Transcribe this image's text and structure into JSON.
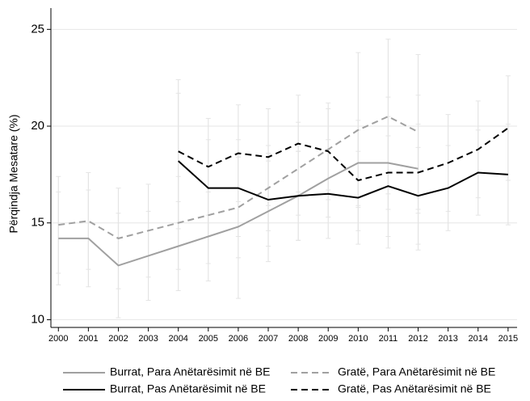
{
  "chart_data": {
    "type": "line",
    "ylabel": "Përqindja Mesatare (%)",
    "x": [
      2000,
      2001,
      2002,
      2003,
      2004,
      2005,
      2006,
      2007,
      2008,
      2009,
      2010,
      2011,
      2012,
      2013,
      2014,
      2015
    ],
    "xlim": [
      1999.75,
      2015.3
    ],
    "xticks": [
      2000,
      2001,
      2002,
      2003,
      2004,
      2005,
      2006,
      2007,
      2008,
      2009,
      2010,
      2011,
      2012,
      2013,
      2014,
      2015
    ],
    "ylim": [
      9.6,
      26.1
    ],
    "yticks": [
      10,
      15,
      20,
      25
    ],
    "grid": true,
    "series": [
      {
        "name": "Burrat, Para Anëtarësimit në BE",
        "color": "#a0a0a0",
        "dash": false,
        "values": [
          14.2,
          14.2,
          12.8,
          13.3,
          13.8,
          14.3,
          14.8,
          15.6,
          16.4,
          17.3,
          18.1,
          18.1,
          17.8,
          null,
          null,
          null
        ],
        "errors": [
          2.4,
          2.5,
          2.7,
          2.3,
          2.3,
          2.3,
          3.7,
          2.6,
          2.3,
          2.0,
          2.2,
          2.4,
          2.3,
          null,
          null,
          null
        ]
      },
      {
        "name": "Gratë, Para Anëtarësimit në BE",
        "color": "#a0a0a0",
        "dash": true,
        "values": [
          14.9,
          15.1,
          14.2,
          14.6,
          15.0,
          15.4,
          15.8,
          16.8,
          17.8,
          18.8,
          19.8,
          20.5,
          19.7,
          null,
          null,
          null
        ],
        "errors": [
          2.5,
          2.5,
          2.6,
          2.4,
          2.4,
          2.5,
          2.6,
          2.2,
          2.4,
          2.1,
          4.0,
          4.0,
          4.0,
          null,
          null,
          null
        ]
      },
      {
        "name": "Burrat, Pas Anëtarësimit në BE",
        "color": "#000000",
        "dash": false,
        "values": [
          null,
          null,
          null,
          null,
          18.2,
          16.8,
          16.8,
          16.2,
          16.4,
          16.5,
          16.3,
          16.9,
          16.4,
          16.8,
          17.6,
          17.5
        ],
        "errors": [
          null,
          null,
          null,
          null,
          3.5,
          2.5,
          2.5,
          2.4,
          2.3,
          2.3,
          2.4,
          2.6,
          2.5,
          2.2,
          2.2,
          2.6
        ]
      },
      {
        "name": "Gratë, Pas Anëtarësimit në BE",
        "color": "#000000",
        "dash": true,
        "values": [
          null,
          null,
          null,
          null,
          18.7,
          17.9,
          18.6,
          18.4,
          19.1,
          18.7,
          17.2,
          17.6,
          17.6,
          18.1,
          18.8,
          19.9
        ],
        "errors": [
          null,
          null,
          null,
          null,
          3.7,
          2.5,
          2.5,
          2.5,
          2.5,
          2.5,
          2.6,
          3.9,
          4.0,
          2.5,
          2.5,
          2.7
        ]
      }
    ]
  }
}
